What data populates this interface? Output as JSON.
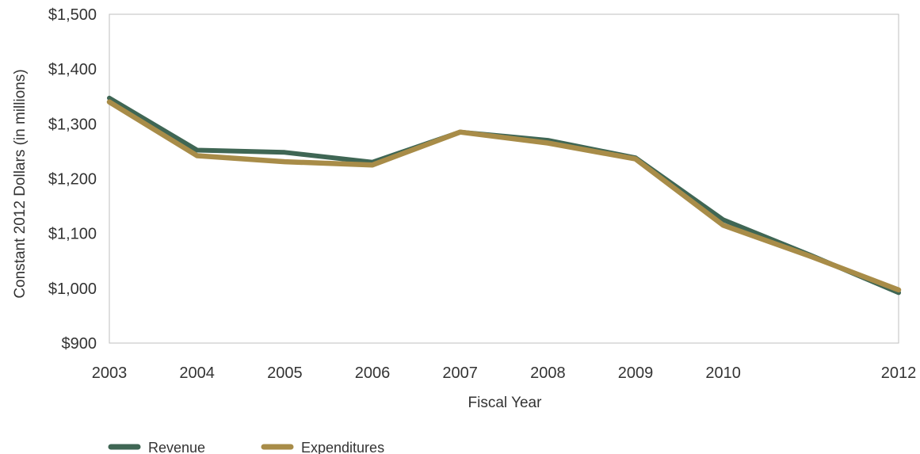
{
  "chart_data": {
    "type": "line",
    "xlabel": "Fiscal Year",
    "ylabel": "Constant 2012 Dollars (in millions)",
    "x": [
      2003,
      2004,
      2005,
      2006,
      2007,
      2008,
      2009,
      2010,
      2011,
      2012
    ],
    "x_tick_labels": [
      "2003",
      "2004",
      "2005",
      "2006",
      "2007",
      "2008",
      "2009",
      "2010",
      "2012"
    ],
    "x_tick_values": [
      2003,
      2004,
      2005,
      2006,
      2007,
      2008,
      2009,
      2010,
      2012
    ],
    "xlim": [
      2003,
      2012
    ],
    "ylim": [
      900,
      1500
    ],
    "y_ticks": [
      900,
      1000,
      1100,
      1200,
      1300,
      1400,
      1500
    ],
    "y_tick_labels": [
      "$900",
      "$1,000",
      "$1,100",
      "$1,200",
      "$1,300",
      "$1,400",
      "$1,500"
    ],
    "grid": false,
    "legend_position": "bottom-left",
    "series": [
      {
        "name": "Revenue",
        "color": "#3f6654",
        "values": [
          1347,
          1252,
          1248,
          1230,
          1285,
          1270,
          1238,
          1125,
          1060,
          992
        ]
      },
      {
        "name": "Expenditures",
        "color": "#a88c48",
        "values": [
          1340,
          1242,
          1231,
          1225,
          1285,
          1265,
          1236,
          1115,
          1058,
          997
        ]
      }
    ]
  }
}
